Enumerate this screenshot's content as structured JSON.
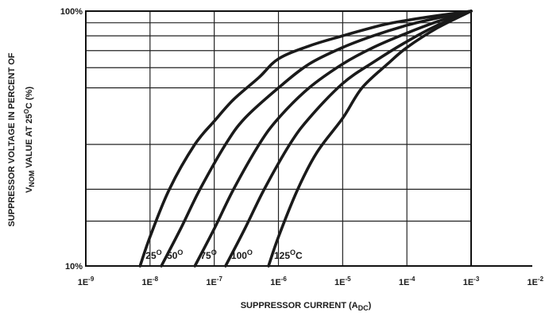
{
  "chart_data": {
    "type": "line",
    "title": "",
    "x_scale": "log",
    "y_scale": "log",
    "xlim": [
      1e-09,
      0.01
    ],
    "ylim": [
      10,
      100
    ],
    "xlabel": {
      "main": "SUPPRESSOR CURRENT (A",
      "sub": "DC",
      "close": ")"
    },
    "ylabel": {
      "line1": "SUPPRESSOR VOLTAGE IN PERCENT OF",
      "line2_main": "V",
      "line2_sub": "NOM",
      "line2_rest": " VALUE AT 25",
      "line2_sup": "O",
      "line2_end": "C (%)"
    },
    "x_ticks": [
      {
        "value": 1e-09,
        "base": "1E",
        "exp": "-9"
      },
      {
        "value": 1e-08,
        "base": "1E",
        "exp": "-8"
      },
      {
        "value": 1e-07,
        "base": "1E",
        "exp": "-7"
      },
      {
        "value": 1e-06,
        "base": "1E",
        "exp": "-6"
      },
      {
        "value": 1e-05,
        "base": "1E",
        "exp": "-5"
      },
      {
        "value": 0.0001,
        "base": "1E",
        "exp": "-4"
      },
      {
        "value": 0.001,
        "base": "1E",
        "exp": "-3"
      },
      {
        "value": 0.01,
        "base": "1E",
        "exp": "-2"
      }
    ],
    "y_ticks": [
      {
        "value": 10,
        "label": "10%"
      },
      {
        "value": 100,
        "label": "100%"
      }
    ],
    "y_gridlines": [
      15,
      20,
      30,
      50,
      60,
      70,
      80,
      90
    ],
    "grid": true,
    "series": [
      {
        "name": "25",
        "sup": "O",
        "unit": "",
        "points": [
          [
            7e-09,
            10
          ],
          [
            1e-08,
            13
          ],
          [
            2e-08,
            20
          ],
          [
            5e-08,
            30
          ],
          [
            1e-07,
            37
          ],
          [
            2e-07,
            45
          ],
          [
            5e-07,
            55
          ],
          [
            1e-06,
            65
          ],
          [
            3e-06,
            73
          ],
          [
            1e-05,
            80
          ],
          [
            4e-05,
            88
          ],
          [
            0.0001,
            92
          ],
          [
            0.0003,
            96
          ],
          [
            0.001,
            100
          ]
        ]
      },
      {
        "name": "50",
        "sup": "O",
        "unit": "",
        "points": [
          [
            1.5e-08,
            10
          ],
          [
            3e-08,
            14
          ],
          [
            6e-08,
            20
          ],
          [
            1.5e-07,
            30
          ],
          [
            3e-07,
            38
          ],
          [
            1e-06,
            50
          ],
          [
            3e-06,
            62
          ],
          [
            1e-05,
            72
          ],
          [
            3e-05,
            80
          ],
          [
            0.0001,
            88
          ],
          [
            0.0003,
            94
          ],
          [
            0.001,
            100
          ]
        ]
      },
      {
        "name": "75",
        "sup": "O",
        "unit": "",
        "points": [
          [
            5e-08,
            10
          ],
          [
            1e-07,
            14
          ],
          [
            2e-07,
            20
          ],
          [
            5e-07,
            30
          ],
          [
            1e-06,
            38
          ],
          [
            3e-06,
            50
          ],
          [
            1e-05,
            62
          ],
          [
            3e-05,
            72
          ],
          [
            0.0001,
            82
          ],
          [
            0.0003,
            91
          ],
          [
            0.001,
            100
          ]
        ]
      },
      {
        "name": "100",
        "sup": "O",
        "unit": "",
        "points": [
          [
            1.5e-07,
            10
          ],
          [
            3e-07,
            14
          ],
          [
            6e-07,
            20
          ],
          [
            1.5e-06,
            30
          ],
          [
            3e-06,
            38
          ],
          [
            1e-05,
            52
          ],
          [
            3e-05,
            63
          ],
          [
            0.0001,
            76
          ],
          [
            0.0003,
            88
          ],
          [
            0.001,
            100
          ]
        ]
      },
      {
        "name": "125",
        "sup": "O",
        "unit": "C",
        "points": [
          [
            7e-07,
            10
          ],
          [
            1e-06,
            13
          ],
          [
            2e-06,
            20
          ],
          [
            4e-06,
            28
          ],
          [
            1e-05,
            38
          ],
          [
            2e-05,
            50
          ],
          [
            5e-05,
            62
          ],
          [
            0.0001,
            72
          ],
          [
            0.0003,
            86
          ],
          [
            0.001,
            100
          ]
        ]
      }
    ],
    "legend": "none"
  }
}
